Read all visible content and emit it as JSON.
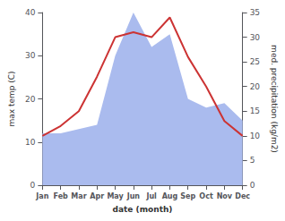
{
  "chart_data": {
    "type": "line",
    "xlabel": "date (month)",
    "ylabel": "max temp (C)",
    "y2label": "med. precipitation (kg/m2)",
    "categories": [
      "Jan",
      "Feb",
      "Mar",
      "Apr",
      "May",
      "Jun",
      "Jul",
      "Aug",
      "Sep",
      "Oct",
      "Nov",
      "Dec"
    ],
    "series": [
      {
        "type": "area",
        "color": "#aabbee",
        "values": [
          12,
          12,
          13,
          14,
          30,
          40,
          32,
          35,
          20,
          18,
          19,
          15
        ]
      },
      {
        "type": "line",
        "color": "#cc3333",
        "axis": "y2",
        "values": [
          10,
          12,
          15,
          22,
          30,
          31,
          30,
          34,
          26,
          20,
          13,
          10
        ]
      }
    ],
    "ylim": [
      0,
      40
    ],
    "yticks": [
      0,
      10,
      20,
      30,
      40
    ],
    "y2lim": [
      0,
      35
    ],
    "y2ticks": [
      0,
      5,
      10,
      15,
      20,
      25,
      30,
      35
    ],
    "grid": false
  }
}
